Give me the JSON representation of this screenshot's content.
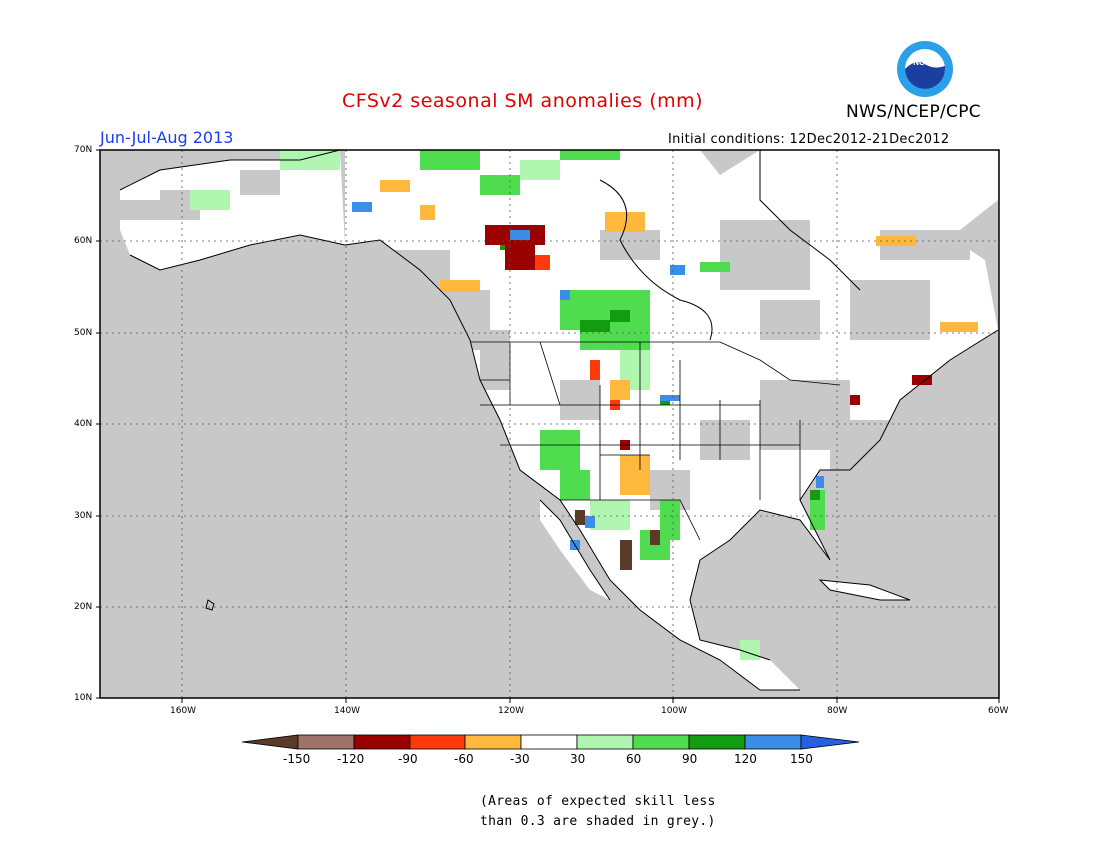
{
  "title": "CFSv2 seasonal SM anomalies (mm)",
  "period": "Jun-Jul-Aug 2013",
  "initial_conditions": "Initial conditions: 12Dec2012-21Dec2012",
  "organization": "NWS/NCEP/CPC",
  "logo_text": "NOAA",
  "lat_labels": [
    "70N",
    "60N",
    "50N",
    "40N",
    "30N",
    "20N",
    "10N"
  ],
  "lon_labels": [
    "160W",
    "140W",
    "120W",
    "100W",
    "80W",
    "60W"
  ],
  "colorbar": {
    "labels": [
      "-150",
      "-120",
      "-90",
      "-60",
      "-30",
      "30",
      "60",
      "90",
      "120",
      "150"
    ],
    "colors": [
      "#5a3a28",
      "#9e7468",
      "#9b0000",
      "#ff3a0a",
      "#ffb83e",
      "#ffffff",
      "#b0f5b0",
      "#4fdc4f",
      "#119c11",
      "#3a8ee8",
      "#2460e0"
    ]
  },
  "note": [
    "(Areas of expected skill less",
    "than 0.3 are shaded in grey.)"
  ],
  "colors": {
    "land_grey": "#c8c8c8",
    "ocean": "#ffffff",
    "title": "#e00000",
    "period": "#1a3ef0"
  }
}
